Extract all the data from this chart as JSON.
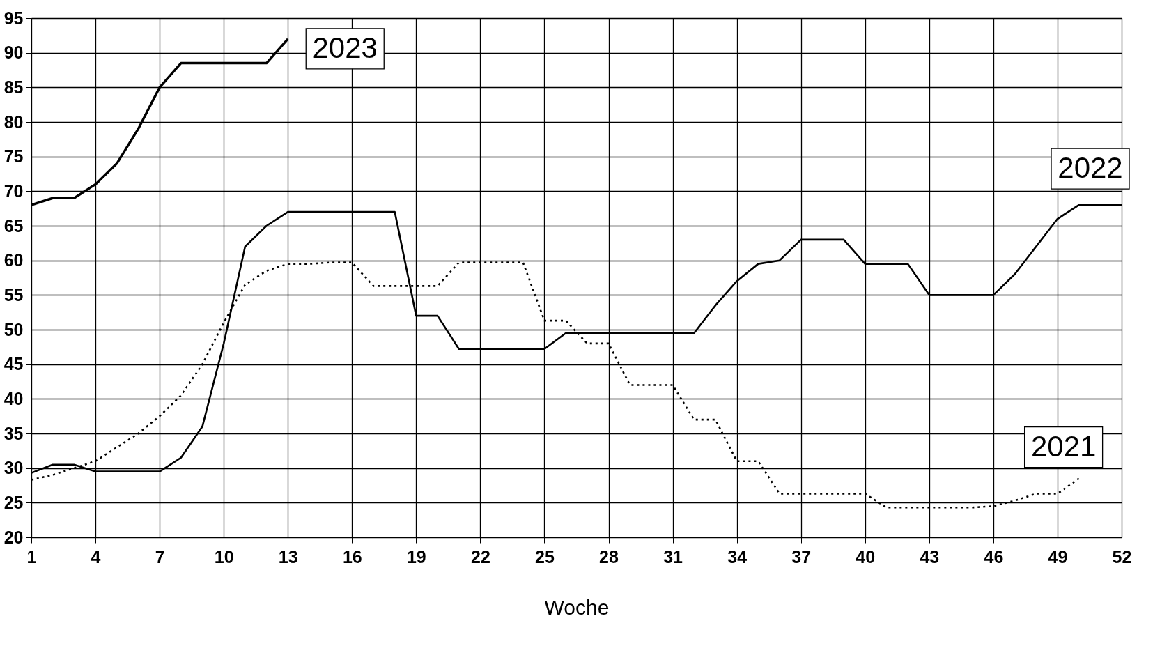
{
  "chart_data": {
    "type": "line",
    "xlabel": "Woche",
    "xlim": [
      1,
      52
    ],
    "xticks": [
      1,
      4,
      7,
      10,
      13,
      16,
      19,
      22,
      25,
      28,
      31,
      34,
      37,
      40,
      43,
      46,
      49,
      52
    ],
    "ylim": [
      20,
      95
    ],
    "yticks": [
      20,
      25,
      30,
      35,
      40,
      45,
      50,
      55,
      60,
      65,
      70,
      75,
      80,
      85,
      90,
      95
    ],
    "grid": true,
    "series": [
      {
        "color": "#000000",
        "line_style": "solid",
        "x": [
          1,
          2,
          3,
          4,
          5,
          6,
          7,
          8,
          9,
          10,
          11,
          12,
          13
        ],
        "values": [
          68,
          69,
          69,
          71,
          74,
          79,
          85,
          88.5,
          88.5,
          88.5,
          88.5,
          88.5,
          92
        ]
      },
      {
        "color": "#000000",
        "line_style": "solid",
        "x": [
          1,
          2,
          3,
          4,
          5,
          6,
          7,
          8,
          9,
          10,
          11,
          12,
          13,
          14,
          15,
          16,
          17,
          18,
          19,
          20,
          21,
          22,
          23,
          24,
          25,
          26,
          27,
          28,
          29,
          30,
          31,
          32,
          33,
          34,
          35,
          36,
          37,
          38,
          39,
          40,
          41,
          42,
          43,
          44,
          45,
          46,
          47,
          48,
          49,
          50,
          51,
          52
        ],
        "values": [
          29.3,
          30.5,
          30.5,
          29.5,
          29.5,
          29.5,
          29.5,
          31.5,
          36,
          48,
          62,
          65,
          67,
          67,
          67,
          67,
          67,
          67,
          52,
          52,
          47.2,
          47.2,
          47.2,
          47.2,
          47.2,
          49.5,
          49.5,
          49.5,
          49.5,
          49.5,
          49.5,
          49.5,
          53.5,
          57,
          59.5,
          60,
          63,
          63,
          63,
          59.5,
          59.5,
          59.5,
          55,
          55,
          55,
          55,
          58,
          62,
          66,
          68,
          68,
          68
        ]
      },
      {
        "color": "#000000",
        "line_style": "dotted",
        "x": [
          1,
          2,
          3,
          4,
          5,
          6,
          7,
          8,
          9,
          10,
          11,
          12,
          13,
          14,
          15,
          16,
          17,
          18,
          19,
          20,
          21,
          22,
          23,
          24,
          25,
          26,
          27,
          28,
          29,
          30,
          31,
          32,
          33,
          34,
          35,
          36,
          37,
          38,
          39,
          40,
          41,
          42,
          43,
          44,
          45,
          46,
          47,
          48,
          49,
          50
        ],
        "values": [
          28.3,
          29,
          30,
          31,
          33,
          35,
          37.5,
          40.5,
          45,
          51,
          56.5,
          58.5,
          59.5,
          59.5,
          59.7,
          59.7,
          56.3,
          56.3,
          56.3,
          56.3,
          59.7,
          59.7,
          59.7,
          59.7,
          51.3,
          51.3,
          48,
          48,
          42,
          42,
          42,
          37,
          37,
          31,
          31,
          26.3,
          26.3,
          26.3,
          26.3,
          26.3,
          24.3,
          24.3,
          24.3,
          24.3,
          24.3,
          24.5,
          25.3,
          26.3,
          26.3,
          28.5
        ]
      }
    ],
    "annotations": [
      {
        "text": "2023",
        "x": 13,
        "y": 92
      },
      {
        "text": "2022",
        "x": 52,
        "y": 68
      },
      {
        "text": "2021",
        "x": 50,
        "y": 28.5
      }
    ]
  }
}
